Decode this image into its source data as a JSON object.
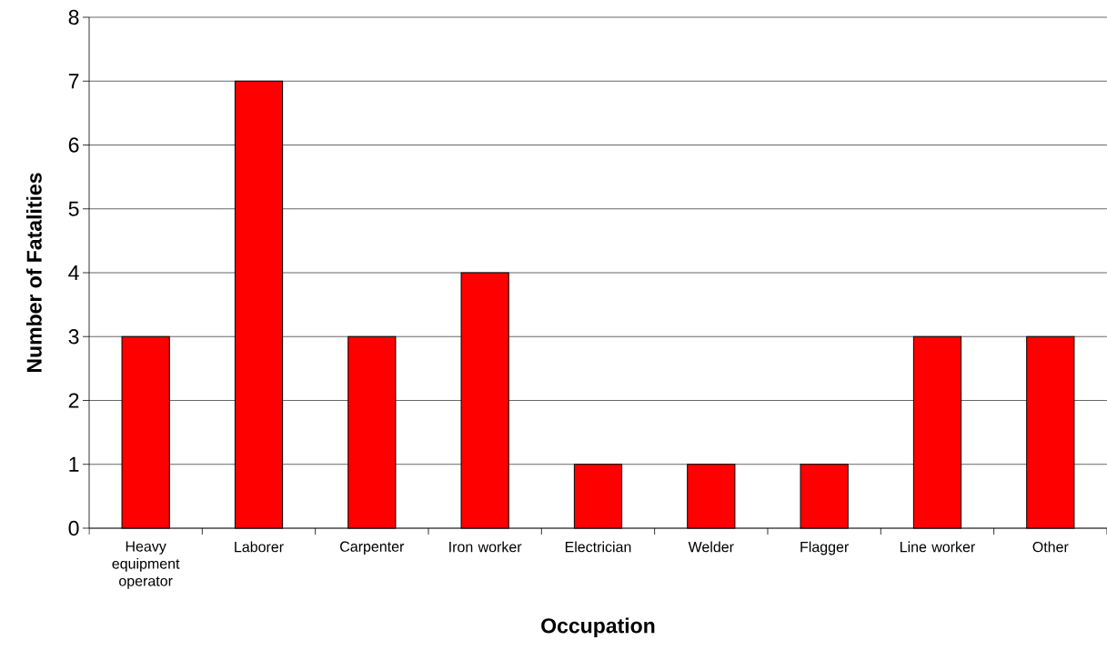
{
  "chart_data": {
    "type": "bar",
    "xlabel": "Occupation",
    "ylabel": "Number of Fatalities",
    "categories": [
      "Heavy equipment operator",
      "Laborer",
      "Carpenter",
      "Iron worker",
      "Electrician",
      "Welder",
      "Flagger",
      "Line worker",
      "Other"
    ],
    "values": [
      3,
      7,
      3,
      4,
      1,
      1,
      1,
      3,
      3
    ],
    "color": "#ff0000",
    "ylim": [
      0,
      8
    ],
    "yticks": [
      0,
      1,
      2,
      3,
      4,
      5,
      6,
      7,
      8
    ],
    "grid": "y"
  }
}
